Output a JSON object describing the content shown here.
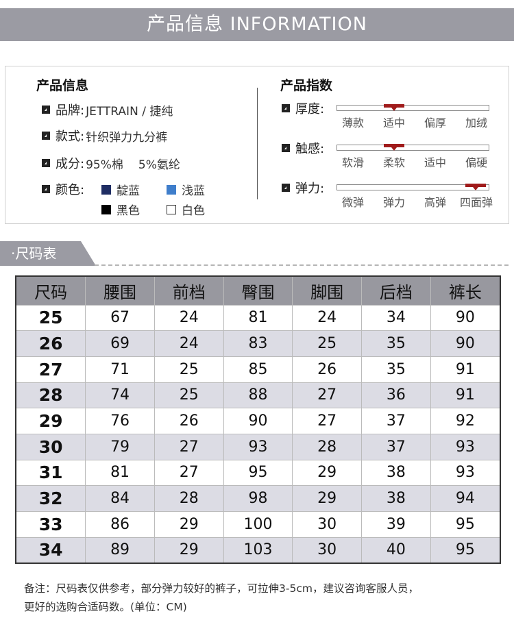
{
  "title": "产品信息 INFORMATION",
  "info": {
    "heading": "产品信息",
    "brand_label": "品牌:",
    "brand": "JETTRAIN / 捷纯",
    "style_label": "款式:",
    "style": "针织弹力九分裤",
    "material_label": "成分:",
    "material_1": "95%棉",
    "material_2": "5%氨纶",
    "color_label": "颜色:",
    "colors": [
      {
        "name": "靛蓝",
        "hex": "#1f2d63"
      },
      {
        "name": "浅蓝",
        "hex": "#3f7ecb"
      },
      {
        "name": "黑色",
        "hex": "#000000"
      },
      {
        "name": "白色",
        "hex": "#ffffff"
      }
    ]
  },
  "index": {
    "heading": "产品指数",
    "items": [
      {
        "label": "厚度:",
        "options": [
          "薄款",
          "适中",
          "偏厚",
          "加绒"
        ],
        "selected": 1
      },
      {
        "label": "触感:",
        "options": [
          "软滑",
          "柔软",
          "适中",
          "偏硬"
        ],
        "selected": 1
      },
      {
        "label": "弹力:",
        "options": [
          "微弹",
          "弹力",
          "高弹",
          "四面弹"
        ],
        "selected": 3
      }
    ]
  },
  "size_tab": "·尺码表",
  "table": {
    "headers": [
      "尺码",
      "腰围",
      "前档",
      "臀围",
      "脚围",
      "后档",
      "裤长"
    ],
    "rows": [
      [
        "25",
        "67",
        "24",
        "81",
        "24",
        "34",
        "90"
      ],
      [
        "26",
        "69",
        "24",
        "83",
        "25",
        "35",
        "90"
      ],
      [
        "27",
        "71",
        "25",
        "85",
        "26",
        "35",
        "91"
      ],
      [
        "28",
        "74",
        "25",
        "88",
        "27",
        "36",
        "91"
      ],
      [
        "29",
        "76",
        "26",
        "90",
        "27",
        "37",
        "92"
      ],
      [
        "30",
        "79",
        "27",
        "93",
        "28",
        "37",
        "93"
      ],
      [
        "31",
        "81",
        "27",
        "95",
        "29",
        "38",
        "93"
      ],
      [
        "32",
        "84",
        "28",
        "98",
        "29",
        "38",
        "94"
      ],
      [
        "33",
        "86",
        "29",
        "100",
        "30",
        "39",
        "95"
      ],
      [
        "34",
        "89",
        "29",
        "103",
        "30",
        "40",
        "95"
      ]
    ]
  },
  "note_line1": "备注：尺码表仅供参考，部分弹力较好的裤子，可拉伸3-5cm，建议咨询客服人员，",
  "note_line2": "更好的选购合适码数。(单位：CM)"
}
